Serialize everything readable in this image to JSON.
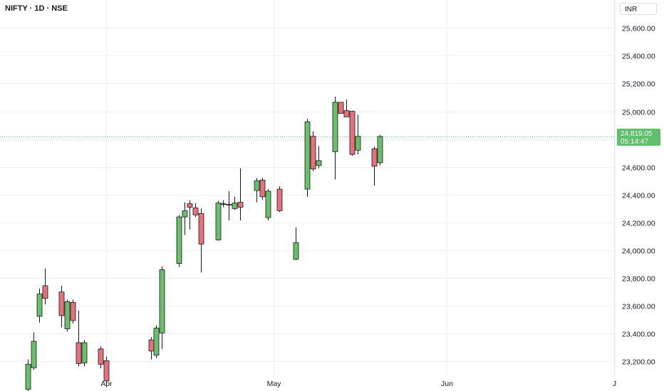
{
  "header": {
    "symbol_line": "NIFTY · 1D · NSE",
    "currency": "INR"
  },
  "last_price": {
    "price": "24,819.05",
    "countdown": "05:14:47"
  },
  "colors": {
    "up": "#6abf69",
    "down": "#e8707b",
    "wick": "#131722",
    "grid": "#eef0f3",
    "tag": "#5fbf6b"
  },
  "chart_data": {
    "type": "candlestick",
    "ylim": [
      23100,
      25760
    ],
    "y_ticks": [
      25600,
      25400,
      25200,
      25000,
      24800,
      24600,
      24400,
      24200,
      24000,
      23800,
      23600,
      23400,
      23200
    ],
    "y_tick_labels": [
      "25,600.00",
      "25,400.00",
      "25,200.00",
      "25,000.00",
      "24,800.00",
      "24,600.00",
      "24,400.00",
      "24,200.00",
      "24,000.00",
      "23,800.00",
      "23,600.00",
      "23,400.00",
      "23,200.00"
    ],
    "x_labels": [
      {
        "label": "Apr",
        "at": "2025-04-01"
      },
      {
        "label": "May",
        "at": "2025-05-01"
      },
      {
        "label": "Jun",
        "at": "2025-06-01"
      },
      {
        "label": "J",
        "at": "2025-07-01"
      }
    ],
    "x_range": [
      "2025-03-13",
      "2025-07-01"
    ],
    "last_price": 24819.05,
    "candles": [
      {
        "date": "2025-03-18",
        "open": 23000,
        "high": 23215,
        "low": 22960,
        "close": 23180
      },
      {
        "date": "2025-03-19",
        "open": 23155,
        "high": 23410,
        "low": 23140,
        "close": 23345
      },
      {
        "date": "2025-03-20",
        "open": 23525,
        "high": 23725,
        "low": 23480,
        "close": 23685
      },
      {
        "date": "2025-03-21",
        "open": 23745,
        "high": 23870,
        "low": 23610,
        "close": 23655
      },
      {
        "date": "2025-03-24",
        "open": 23700,
        "high": 23745,
        "low": 23445,
        "close": 23530
      },
      {
        "date": "2025-03-25",
        "open": 23435,
        "high": 23645,
        "low": 23415,
        "close": 23630
      },
      {
        "date": "2025-03-26",
        "open": 23625,
        "high": 23645,
        "low": 23475,
        "close": 23495
      },
      {
        "date": "2025-03-27",
        "open": 23335,
        "high": 23565,
        "low": 23165,
        "close": 23185
      },
      {
        "date": "2025-03-28",
        "open": 23190,
        "high": 23355,
        "low": 23165,
        "close": 23335
      },
      {
        "date": "2025-03-31",
        "open": 23290,
        "high": 23310,
        "low": 23150,
        "close": 23180
      },
      {
        "date": "2025-04-01",
        "open": 23205,
        "high": 23235,
        "low": 23020,
        "close": 23060
      },
      {
        "date": "2025-04-09",
        "open": 23355,
        "high": 23375,
        "low": 23215,
        "close": 23275
      },
      {
        "date": "2025-04-10",
        "open": 23245,
        "high": 23460,
        "low": 23225,
        "close": 23440
      },
      {
        "date": "2025-04-11",
        "open": 23405,
        "high": 23885,
        "low": 23290,
        "close": 23860
      },
      {
        "date": "2025-04-14",
        "open": 23905,
        "high": 24255,
        "low": 23880,
        "close": 24240
      },
      {
        "date": "2025-04-15",
        "open": 24240,
        "high": 24345,
        "low": 24110,
        "close": 24285
      },
      {
        "date": "2025-04-16",
        "open": 24335,
        "high": 24360,
        "low": 24150,
        "close": 24310
      },
      {
        "date": "2025-04-17",
        "open": 24305,
        "high": 24340,
        "low": 24240,
        "close": 24255
      },
      {
        "date": "2025-04-18",
        "open": 24265,
        "high": 24300,
        "low": 23840,
        "close": 24045
      },
      {
        "date": "2025-04-21",
        "open": 24075,
        "high": 24355,
        "low": 24070,
        "close": 24340
      },
      {
        "date": "2025-04-22",
        "open": 24330,
        "high": 24360,
        "low": 24310,
        "close": 24335
      },
      {
        "date": "2025-04-23",
        "open": 24330,
        "high": 24425,
        "low": 24215,
        "close": 24325
      },
      {
        "date": "2025-04-24",
        "open": 24300,
        "high": 24385,
        "low": 24290,
        "close": 24340
      },
      {
        "date": "2025-04-25",
        "open": 24345,
        "high": 24590,
        "low": 24215,
        "close": 24310
      },
      {
        "date": "2025-04-28",
        "open": 24430,
        "high": 24520,
        "low": 24345,
        "close": 24500
      },
      {
        "date": "2025-04-29",
        "open": 24505,
        "high": 24520,
        "low": 24365,
        "close": 24385
      },
      {
        "date": "2025-04-30",
        "open": 24235,
        "high": 24440,
        "low": 24215,
        "close": 24425
      },
      {
        "date": "2025-05-02",
        "open": 24440,
        "high": 24460,
        "low": 24275,
        "close": 24285
      },
      {
        "date": "2025-05-05",
        "open": 23935,
        "high": 24165,
        "low": 23930,
        "close": 24055
      },
      {
        "date": "2025-05-07",
        "open": 24440,
        "high": 24945,
        "low": 24385,
        "close": 24925
      },
      {
        "date": "2025-05-08",
        "open": 24820,
        "high": 24855,
        "low": 24570,
        "close": 24585
      },
      {
        "date": "2025-05-09",
        "open": 24610,
        "high": 24750,
        "low": 24590,
        "close": 24645
      },
      {
        "date": "2025-05-12",
        "open": 24710,
        "high": 25105,
        "low": 24510,
        "close": 25065
      },
      {
        "date": "2025-05-13",
        "open": 25065,
        "high": 25065,
        "low": 24985,
        "close": 24985
      },
      {
        "date": "2025-05-14",
        "open": 25005,
        "high": 25085,
        "low": 24960,
        "close": 24960
      },
      {
        "date": "2025-05-15",
        "open": 25000,
        "high": 25005,
        "low": 24680,
        "close": 24690
      },
      {
        "date": "2025-05-16",
        "open": 24720,
        "high": 24975,
        "low": 24690,
        "close": 24820
      },
      {
        "date": "2025-05-19",
        "open": 24730,
        "high": 24745,
        "low": 24465,
        "close": 24605
      },
      {
        "date": "2025-05-20",
        "open": 24630,
        "high": 24830,
        "low": 24610,
        "close": 24819
      }
    ]
  }
}
